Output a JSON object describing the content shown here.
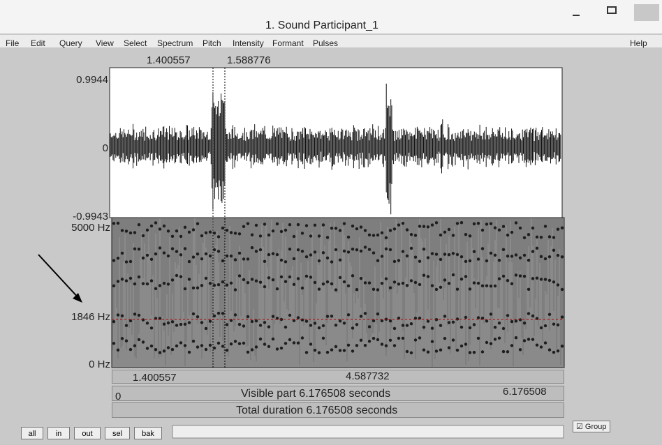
{
  "window": {
    "title": "1. Sound Participant_1"
  },
  "menu": [
    "File",
    "Edit",
    "Query",
    "View",
    "Select",
    "Spectrum",
    "Pitch",
    "Intensity",
    "Formant",
    "Pulses"
  ],
  "help": "Help",
  "selection_top": {
    "left": "1.400557",
    "right": "1.588776"
  },
  "waveform_axis": {
    "max": "0.9944",
    "zero": "0",
    "min": "-0.9943"
  },
  "spectrogram_axis": {
    "top": "5000 Hz",
    "cursor": "1846 Hz",
    "bottom": "0 Hz"
  },
  "time_bar": {
    "left": "1.400557",
    "right": "4.587732"
  },
  "visible_bar": {
    "start": "0",
    "label": "Visible part 6.176508 seconds",
    "end": "6.176508"
  },
  "total_bar": {
    "label": "Total duration 6.176508 seconds"
  },
  "buttons": [
    "all",
    "in",
    "out",
    "sel",
    "bak"
  ],
  "group": "Group"
}
